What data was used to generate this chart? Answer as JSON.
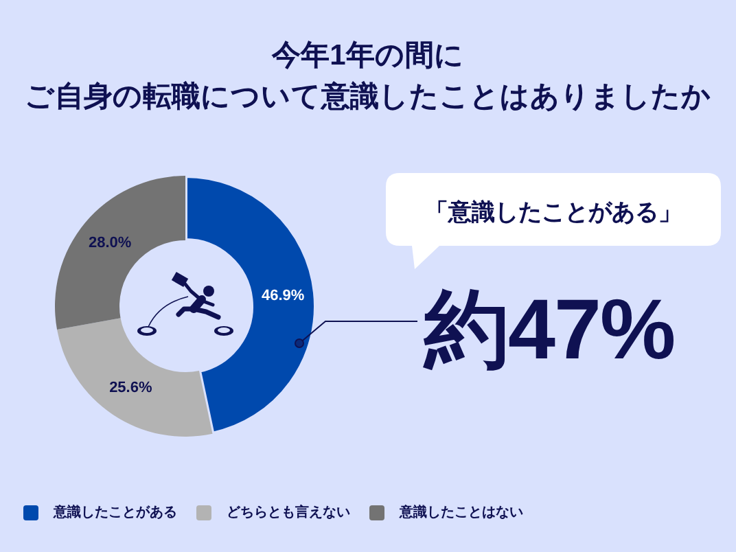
{
  "chart_data": {
    "type": "donut",
    "title": "今年1年の間に",
    "subtitle": "ご自身の転職について意識したことはありましたか",
    "categories": [
      "意識したことがある",
      "どちらとも言えない",
      "意識したことはない"
    ],
    "values": [
      46.9,
      25.6,
      28.0
    ],
    "colors": [
      "#0049ad",
      "#b3b3b3",
      "#737373"
    ],
    "value_labels": [
      "46.9%",
      "25.6%",
      "28.0%"
    ],
    "annotations": [
      "「意識したことがある」",
      "約47%"
    ],
    "legend": "bottom"
  }
}
